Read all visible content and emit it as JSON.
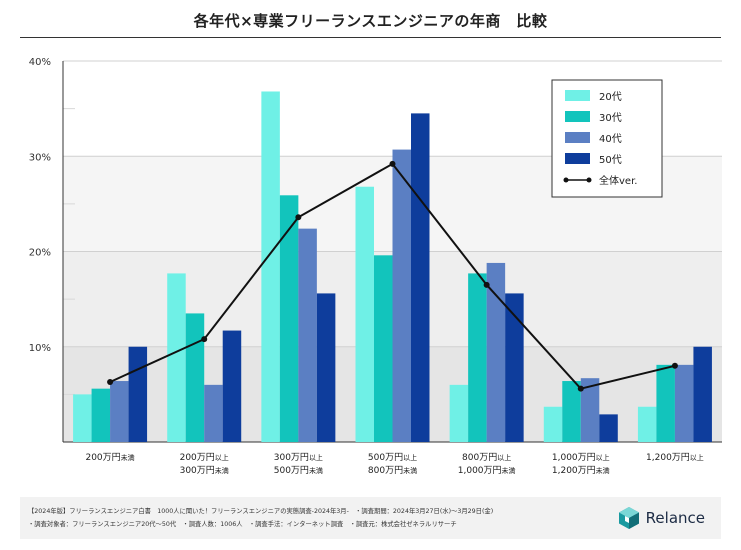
{
  "title": "各年代×専業フリーランスエンジニアの年商　比較",
  "chart_data": {
    "type": "bar",
    "categories": [
      [
        "200万円",
        "未満"
      ],
      [
        "200万円",
        "以上",
        "300万円",
        "未満"
      ],
      [
        "300万円",
        "以上",
        "500万円",
        "未満"
      ],
      [
        "500万円",
        "以上",
        "800万円",
        "未満"
      ],
      [
        "800万円",
        "以上",
        "1,000万円",
        "未満"
      ],
      [
        "1,000万円",
        "以上",
        "1,200万円",
        "未満"
      ],
      [
        "1,200万円",
        "以上"
      ]
    ],
    "series": [
      {
        "name": "20代",
        "color": "#6ff0e6",
        "values": [
          5.0,
          17.7,
          36.8,
          26.8,
          6.0,
          3.7,
          3.7
        ]
      },
      {
        "name": "30代",
        "color": "#12c4bc",
        "values": [
          5.6,
          13.5,
          25.9,
          19.6,
          17.7,
          6.4,
          8.1
        ]
      },
      {
        "name": "40代",
        "color": "#5b7fc3",
        "values": [
          6.4,
          6.0,
          22.4,
          30.7,
          18.8,
          6.7,
          8.1
        ]
      },
      {
        "name": "50代",
        "color": "#0e3d9c",
        "values": [
          10.0,
          11.7,
          15.6,
          34.5,
          15.6,
          2.9,
          10.0
        ]
      }
    ],
    "line": {
      "name": "全体ver.",
      "color": "#111111",
      "values": [
        6.3,
        10.8,
        23.6,
        29.2,
        16.5,
        5.6,
        8.0
      ]
    },
    "ylim": [
      0,
      40
    ],
    "yticks": [
      "10%",
      "20%",
      "30%",
      "40%"
    ],
    "yticks_values": [
      10,
      20,
      30,
      40
    ],
    "legend_position": "top-right",
    "xlabel": "",
    "ylabel": ""
  },
  "footer": {
    "line1": "【2024年版】フリーランスエンジニア白書　1000人に聞いた！フリーランスエンジニアの実態調査-2024年3月-　・調査期間：2024年3月27日(水)〜3月29日(金)",
    "line2": "・調査対象者：フリーランスエンジニア20代〜50代　・調査人数：1006人　・調査手法：インターネット調査　・調査元：株式会社ゼネラルリサーチ",
    "brand": "Relance"
  }
}
